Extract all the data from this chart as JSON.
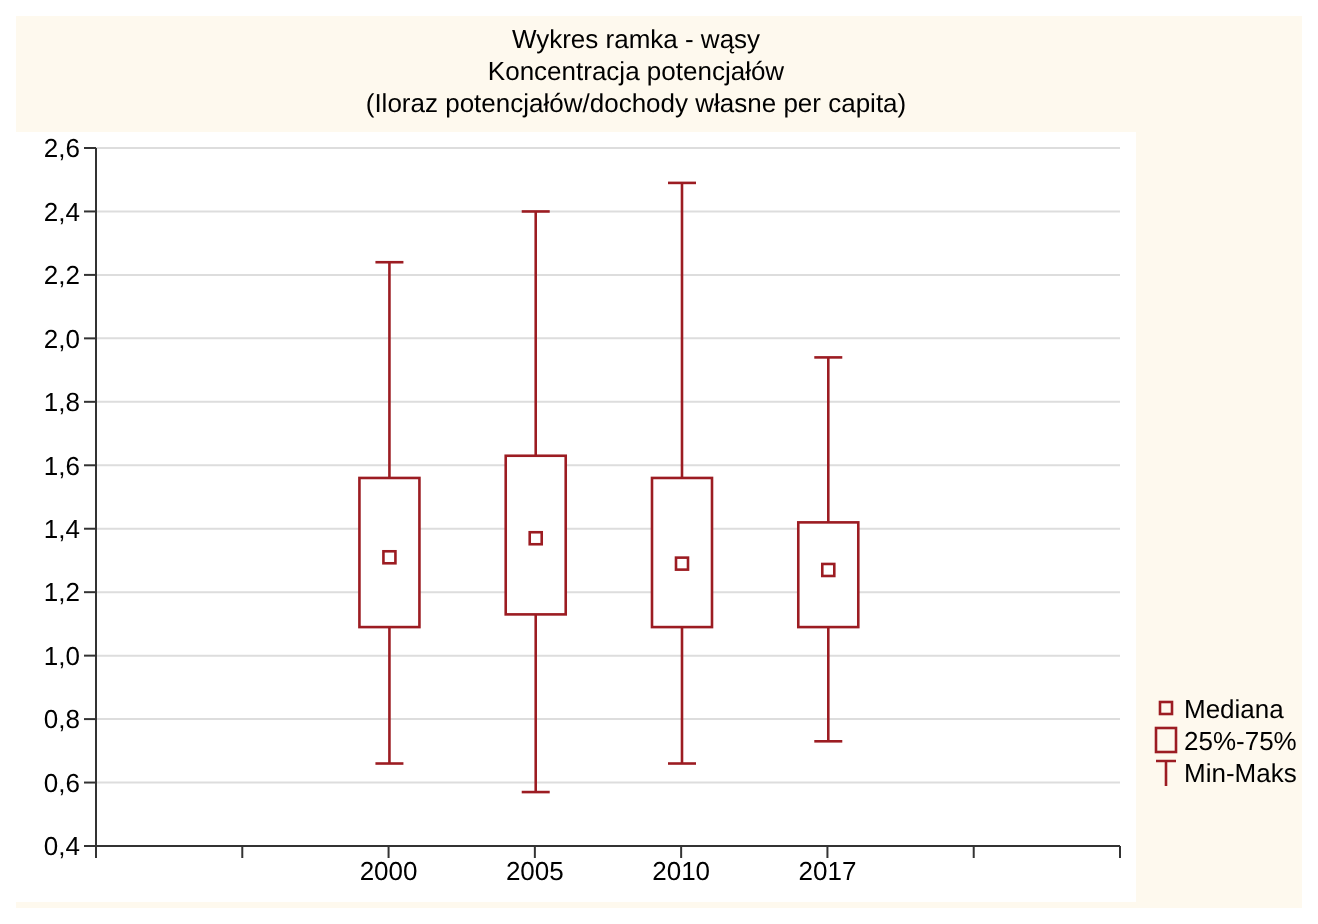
{
  "chart_data": {
    "type": "box",
    "title": "Wykres ramka - wąsy",
    "subtitle": "Koncentracja potencjałów\n(Iloraz potencjałów/dochody własne per capita)",
    "categories": [
      null,
      null,
      "2000",
      "2005",
      "2010",
      "2017",
      null,
      null
    ],
    "color": "#9c1c22",
    "boxes": [
      null,
      null,
      {
        "low": 0.66,
        "q1": 1.09,
        "median": 1.31,
        "q3": 1.56,
        "high": 2.24
      },
      {
        "low": 0.57,
        "q1": 1.13,
        "median": 1.37,
        "q3": 1.63,
        "high": 2.4
      },
      {
        "low": 0.66,
        "q1": 1.09,
        "median": 1.29,
        "q3": 1.56,
        "high": 2.49
      },
      {
        "low": 0.73,
        "q1": 1.09,
        "median": 1.27,
        "q3": 1.42,
        "high": 1.94
      },
      null,
      null
    ],
    "ylim": [
      0.4,
      2.6
    ],
    "yticks": [
      {
        "value": 0.4,
        "label": "0,4"
      },
      {
        "value": 0.6,
        "label": "0,6"
      },
      {
        "value": 0.8,
        "label": "0,8"
      },
      {
        "value": 1.0,
        "label": "1,0"
      },
      {
        "value": 1.2,
        "label": "1,2"
      },
      {
        "value": 1.4,
        "label": "1,4"
      },
      {
        "value": 1.6,
        "label": "1,6"
      },
      {
        "value": 1.8,
        "label": "1,8"
      },
      {
        "value": 2.0,
        "label": "2,0"
      },
      {
        "value": 2.2,
        "label": "2,2"
      },
      {
        "value": 2.4,
        "label": "2,4"
      },
      {
        "value": 2.6,
        "label": "2,6"
      }
    ],
    "grid": "y",
    "annotations": [
      "Mediana",
      "25%-75%",
      "Min-Maks"
    ]
  }
}
